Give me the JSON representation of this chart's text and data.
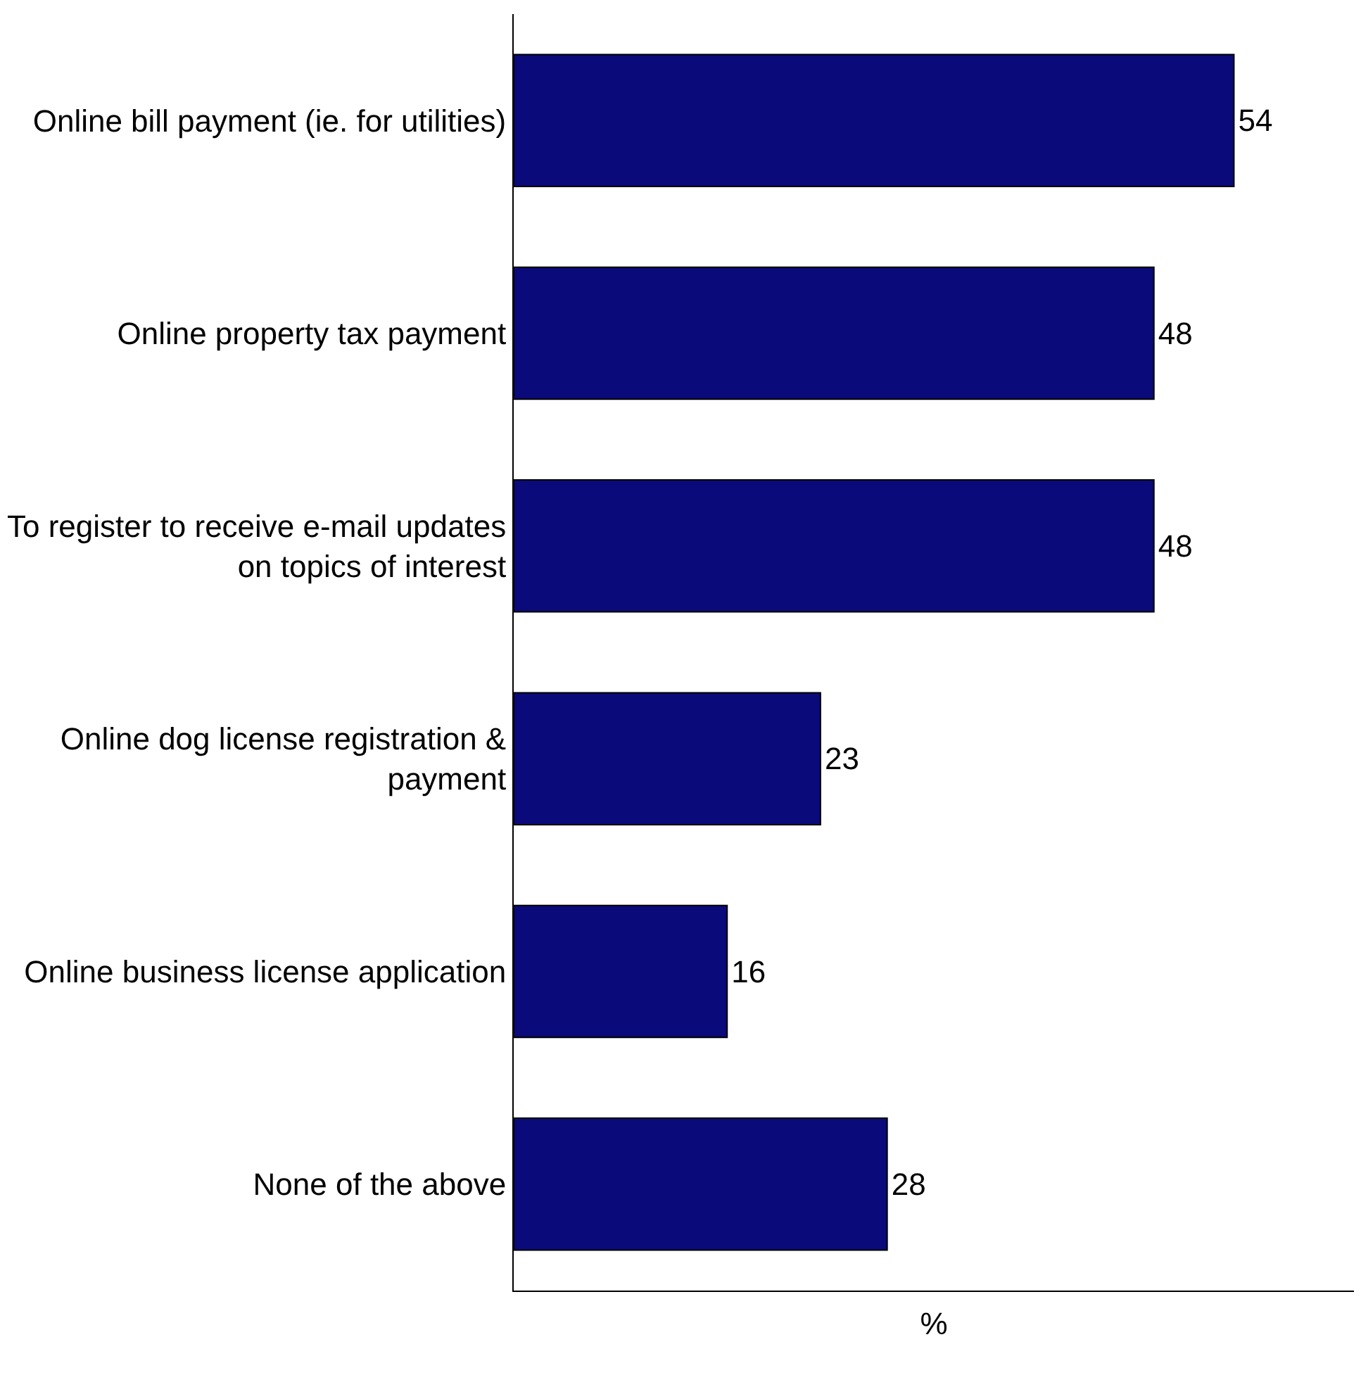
{
  "chart_data": {
    "type": "bar",
    "orientation": "horizontal",
    "xlabel": "%",
    "categories": [
      "Online bill payment (ie. for utilities)",
      "Online property tax payment",
      "To register to receive e-mail updates\non topics of interest",
      "Online dog license registration &\npayment",
      "Online business license application",
      "None of the above"
    ],
    "values": [
      54,
      48,
      48,
      23,
      16,
      28
    ],
    "color": "#0a0a7a",
    "xlim": [
      0,
      63
    ],
    "tick_labels": "y",
    "data_labels": true
  }
}
